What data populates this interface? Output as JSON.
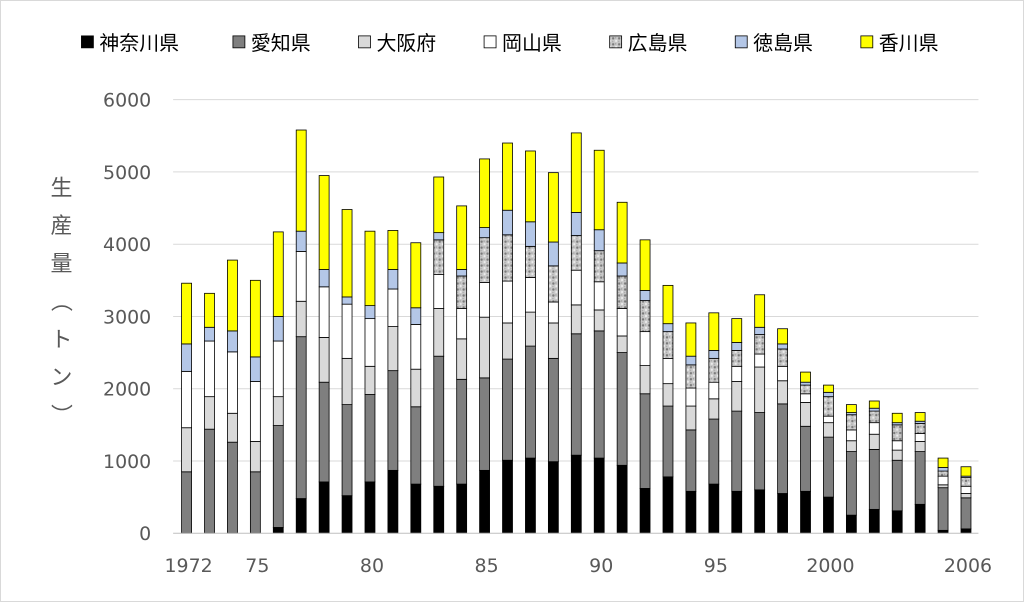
{
  "chart_data": {
    "type": "bar",
    "stacked": true,
    "title": "",
    "xlabel": "",
    "ylabel": "生産量（トン）",
    "ylim": [
      0,
      6000
    ],
    "yticks": [
      0,
      1000,
      2000,
      3000,
      4000,
      5000,
      6000
    ],
    "xtick_labels": [
      "1972",
      "75",
      "80",
      "85",
      "90",
      "95",
      "2000",
      "2006"
    ],
    "legend_position": "top",
    "grid": true,
    "categories": [
      1972,
      1973,
      1974,
      1975,
      1976,
      1977,
      1978,
      1979,
      1980,
      1981,
      1982,
      1983,
      1984,
      1985,
      1986,
      1987,
      1988,
      1989,
      1990,
      1991,
      1992,
      1993,
      1994,
      1995,
      1996,
      1997,
      1998,
      1999,
      2000,
      2001,
      2002,
      2003,
      2004,
      2005,
      2006
    ],
    "series": [
      {
        "name": "神奈川県",
        "color": "#000000",
        "pattern": "solid",
        "values": [
          0,
          0,
          0,
          0,
          80,
          480,
          710,
          520,
          710,
          870,
          680,
          650,
          680,
          870,
          1010,
          1040,
          990,
          1080,
          1040,
          940,
          620,
          780,
          580,
          680,
          580,
          600,
          550,
          580,
          500,
          250,
          330,
          310,
          400,
          40,
          60
        ]
      },
      {
        "name": "愛知県",
        "color": "#7f7f7f",
        "pattern": "solid",
        "values": [
          850,
          1440,
          1260,
          850,
          1410,
          2240,
          1380,
          1260,
          1210,
          1380,
          1070,
          1800,
          1450,
          1280,
          1400,
          1550,
          1430,
          1680,
          1760,
          1560,
          1310,
          980,
          850,
          900,
          1110,
          1070,
          1240,
          900,
          830,
          880,
          830,
          700,
          730,
          590,
          430
        ]
      },
      {
        "name": "大阪府",
        "color": "#d9d9d9",
        "pattern": "solid",
        "values": [
          610,
          450,
          400,
          420,
          400,
          490,
          620,
          640,
          390,
          610,
          520,
          660,
          560,
          840,
          500,
          470,
          490,
          400,
          290,
          230,
          390,
          310,
          330,
          280,
          410,
          630,
          320,
          330,
          200,
          150,
          210,
          140,
          140,
          40,
          60
        ]
      },
      {
        "name": "岡山県",
        "color": "#ffffff",
        "pattern": "solid",
        "values": [
          780,
          770,
          850,
          830,
          770,
          690,
          700,
          750,
          660,
          520,
          620,
          470,
          420,
          480,
          580,
          480,
          290,
          480,
          390,
          380,
          470,
          350,
          250,
          230,
          210,
          180,
          200,
          120,
          90,
          150,
          160,
          130,
          110,
          120,
          100
        ]
      },
      {
        "name": "広島県",
        "color": "#bfbfbf",
        "pattern": "speckle",
        "values": [
          0,
          0,
          0,
          0,
          0,
          0,
          0,
          0,
          0,
          0,
          0,
          480,
          450,
          620,
          640,
          430,
          500,
          480,
          430,
          450,
          430,
          370,
          320,
          330,
          220,
          270,
          240,
          120,
          270,
          210,
          160,
          220,
          140,
          70,
          120
        ]
      },
      {
        "name": "徳島県",
        "color": "#b4c7e7",
        "pattern": "solid",
        "values": [
          380,
          190,
          290,
          340,
          340,
          280,
          240,
          100,
          180,
          270,
          230,
          100,
          90,
          140,
          340,
          340,
          330,
          320,
          290,
          180,
          140,
          110,
          120,
          110,
          110,
          100,
          70,
          40,
          60,
          30,
          40,
          30,
          30,
          50,
          20
        ]
      },
      {
        "name": "香川県",
        "color": "#ffff00",
        "pattern": "solid",
        "values": [
          840,
          470,
          980,
          1060,
          1170,
          1400,
          1300,
          1210,
          1030,
          540,
          900,
          770,
          880,
          950,
          930,
          980,
          960,
          1100,
          1100,
          840,
          700,
          530,
          460,
          520,
          330,
          450,
          210,
          140,
          100,
          110,
          100,
          130,
          120,
          130,
          130
        ]
      }
    ]
  }
}
